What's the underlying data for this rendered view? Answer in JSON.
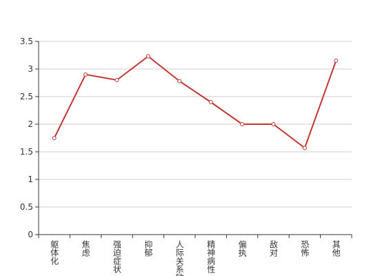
{
  "chart_data": {
    "type": "line",
    "categories": [
      "躯体化",
      "焦虑",
      "强迫症状",
      "抑郁",
      "人际关系敏感",
      "精神病性",
      "偏执",
      "敌对",
      "恐怖",
      "其他"
    ],
    "series": [
      {
        "color": "#c23531",
        "values": [
          1.75,
          2.9,
          2.8,
          3.23,
          2.78,
          2.4,
          2.0,
          2.0,
          1.57,
          3.15
        ]
      }
    ],
    "ylim": [
      0,
      3.5
    ],
    "yticks": [
      0,
      0.5,
      1,
      1.5,
      2,
      2.5,
      3,
      3.5
    ],
    "grid": true
  }
}
